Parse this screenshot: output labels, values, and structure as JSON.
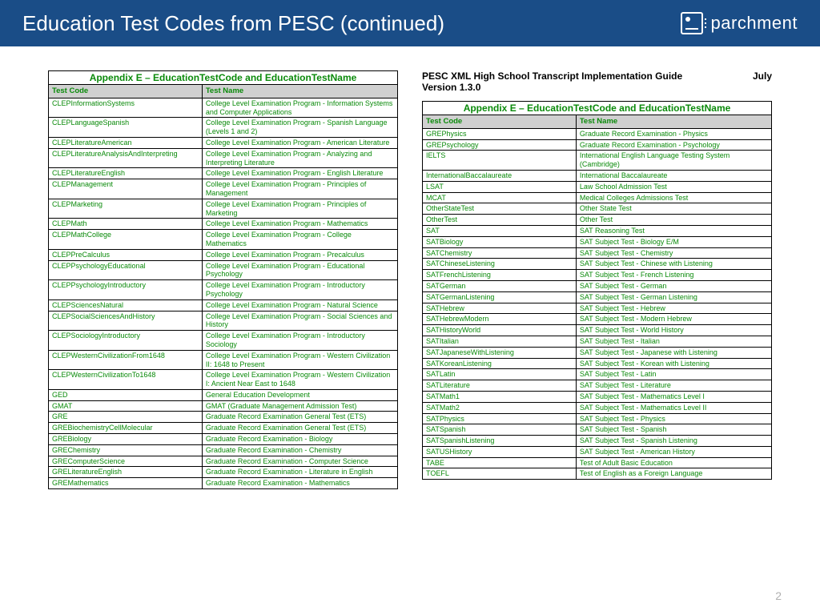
{
  "header": {
    "title": "Education Test Codes from PESC (continued)",
    "logo_text": "parchment"
  },
  "doc_heading": {
    "left_line1": "PESC XML High School Transcript Implementation Guide",
    "left_line2": "Version 1.3.0",
    "right": "July "
  },
  "appendix_title": "Appendix E – EducationTestCode and EducationTestName",
  "columns": {
    "code": "Test Code",
    "name": "Test Name"
  },
  "left_rows": [
    [
      "CLEPInformationSystems",
      "College Level Examination Program - Information Systems and Computer Applications"
    ],
    [
      "CLEPLanguageSpanish",
      "College Level Examination Program - Spanish Language (Levels 1 and 2)"
    ],
    [
      "CLEPLiteratureAmerican",
      "College Level Examination Program - American Literature"
    ],
    [
      "CLEPLiteratureAnalysisAndInterpreting",
      "College Level Examination Program - Analyzing and Interpreting Literature"
    ],
    [
      "CLEPLiteratureEnglish",
      "College Level Examination Program - English Literature"
    ],
    [
      "CLEPManagement",
      "College Level Examination Program - Principles of Management"
    ],
    [
      "CLEPMarketing",
      "College Level Examination Program - Principles of Marketing"
    ],
    [
      "CLEPMath",
      "College Level Examination Program - Mathematics"
    ],
    [
      "CLEPMathCollege",
      "College Level Examination Program - College Mathematics"
    ],
    [
      "CLEPPreCalculus",
      "College Level Examination Program - Precalculus"
    ],
    [
      "CLEPPsychologyEducational",
      "College Level Examination Program - Educational Psychology"
    ],
    [
      "CLEPPsychologyIntroductory",
      "College Level Examination Program - Introductory Psychology"
    ],
    [
      "CLEPSciencesNatural",
      "College Level Examination Program - Natural Science"
    ],
    [
      "CLEPSocialSciencesAndHistory",
      "College Level Examination Program - Social Sciences and History"
    ],
    [
      "CLEPSociologyIntroductory",
      "College Level Examination Program - Introductory Sociology"
    ],
    [
      "CLEPWesternCivilizationFrom1648",
      "College Level Examination Program - Western Civilization II: 1648 to Present"
    ],
    [
      "CLEPWesternCivilizationTo1648",
      "College Level Examination Program - Western Civilization I:  Ancient Near East to 1648"
    ],
    [
      "GED",
      "General Education Development"
    ],
    [
      "GMAT",
      "GMAT (Graduate Management Admission Test)"
    ],
    [
      "GRE",
      "Graduate Record Examination General Test (ETS)"
    ],
    [
      "GREBiochemistryCellMolecular",
      "Graduate Record Examination General Test (ETS)"
    ],
    [
      "GREBiology",
      "Graduate Record Examination - Biology"
    ],
    [
      "GREChemistry",
      "Graduate Record Examination - Chemistry"
    ],
    [
      "GREComputerScience",
      "Graduate Record Examination - Computer Science"
    ],
    [
      "GRELiteratureEnglish",
      "Graduate Record Examination - Literature in English"
    ],
    [
      "GREMathematics",
      "Graduate Record Examination - Mathematics"
    ]
  ],
  "right_rows": [
    [
      "GREPhysics",
      "Graduate Record Examination - Physics"
    ],
    [
      "GREPsychology",
      "Graduate Record Examination - Psychology"
    ],
    [
      "IELTS",
      "International English Language Testing System (Cambridge)"
    ],
    [
      "InternationalBaccalaureate",
      "International Baccalaureate"
    ],
    [
      "LSAT",
      "Law School Admission Test"
    ],
    [
      "MCAT",
      "Medical Colleges Admissions Test"
    ],
    [
      "OtherStateTest",
      "Other State Test"
    ],
    [
      "OtherTest",
      "Other Test"
    ],
    [
      "SAT",
      "SAT Reasoning Test"
    ],
    [
      "SATBiology",
      "SAT Subject Test - Biology E/M"
    ],
    [
      "SATChemistry",
      "SAT Subject Test - Chemistry"
    ],
    [
      "SATChineseListening",
      "SAT Subject Test - Chinese with Listening"
    ],
    [
      "SATFrenchListening",
      "SAT Subject Test - French Listening"
    ],
    [
      "SATGerman",
      "SAT Subject Test - German"
    ],
    [
      "SATGermanListening",
      "SAT Subject Test - German Listening"
    ],
    [
      "SATHebrew",
      "SAT Subject Test - Hebrew"
    ],
    [
      "SATHebrewModern",
      "SAT Subject Test - Modern Hebrew"
    ],
    [
      "SATHistoryWorld",
      "SAT Subject Test - World History"
    ],
    [
      "SATItalian",
      "SAT Subject Test - Italian"
    ],
    [
      "SATJapaneseWithListening",
      "SAT Subject Test - Japanese with Listening"
    ],
    [
      "SATKoreanListening",
      "SAT Subject Test - Korean with Listening"
    ],
    [
      "SATLatin",
      "SAT Subject Test - Latin"
    ],
    [
      "SATLiterature",
      "SAT Subject Test - Literature"
    ],
    [
      "SATMath1",
      "SAT Subject Test - Mathematics Level I"
    ],
    [
      "SATMath2",
      "SAT Subject Test - Mathematics Level II"
    ],
    [
      "SATPhysics",
      "SAT Subject Test - Physics"
    ],
    [
      "SATSpanish",
      "SAT Subject Test - Spanish"
    ],
    [
      "SATSpanishListening",
      "SAT Subject Test - Spanish Listening"
    ],
    [
      "SATUSHistory",
      "SAT Subject Test - American History"
    ],
    [
      "TABE",
      "Test of Adult Basic Education"
    ],
    [
      "TOEFL",
      "Test of English as a Foreign Language"
    ]
  ],
  "page_number": "2",
  "colors": {
    "header_bg": "#1a4d87",
    "text_green": "#0a8a0a",
    "header_cell_bg": "#d0d0d0",
    "title_cell_bg": "#e8e8e8"
  }
}
